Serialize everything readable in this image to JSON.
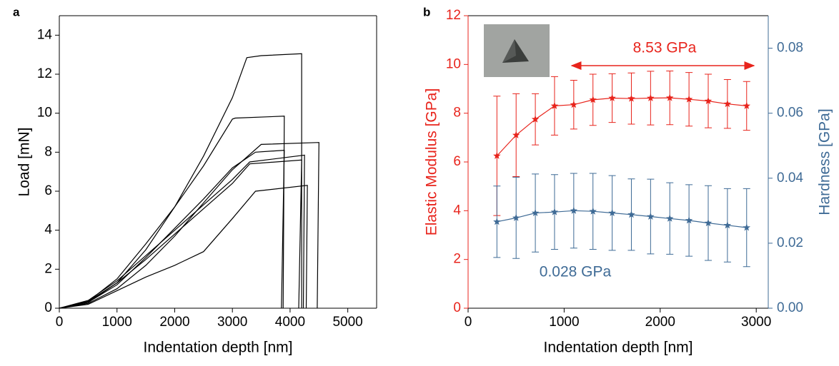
{
  "chart_data": [
    {
      "type": "line",
      "panel": "a",
      "xlabel": "Indentation depth [nm]",
      "ylabel": "Load [mN]",
      "xlim": [
        0,
        5500
      ],
      "xticks": [
        0,
        1000,
        2000,
        3000,
        4000,
        5000
      ],
      "ylim": [
        0,
        15
      ],
      "yticks": [
        0,
        2,
        4,
        6,
        8,
        10,
        12,
        14
      ],
      "color": "#000000",
      "series": [
        {
          "x": [
            0,
            500,
            1000,
            1500,
            2000,
            2500,
            3000,
            3250,
            3500,
            4200,
            4200
          ],
          "values": [
            0,
            0.3,
            1.3,
            3,
            5.2,
            7.8,
            10.8,
            12.85,
            12.95,
            13.05,
            0
          ]
        },
        {
          "x": [
            0,
            500,
            1000,
            1500,
            2000,
            2500,
            3000,
            3050,
            3900,
            3880
          ],
          "values": [
            0,
            0.35,
            1.5,
            3.3,
            5.2,
            7.3,
            9.7,
            9.75,
            9.85,
            0
          ]
        },
        {
          "x": [
            0,
            500,
            1000,
            1500,
            2000,
            2500,
            3000,
            3500,
            4500,
            4470
          ],
          "values": [
            0,
            0.25,
            1,
            2.2,
            3.7,
            5.4,
            7.1,
            8.4,
            8.5,
            0
          ]
        },
        {
          "x": [
            0,
            500,
            1000,
            1500,
            2000,
            2500,
            3000,
            3400,
            3900,
            3850
          ],
          "values": [
            0,
            0.3,
            1.2,
            2.6,
            4.1,
            5.6,
            7.2,
            8,
            8.1,
            0
          ]
        },
        {
          "x": [
            0,
            500,
            1000,
            1500,
            2000,
            2500,
            3000,
            3300,
            4250,
            4230
          ],
          "values": [
            0,
            0.4,
            1.4,
            2.7,
            4,
            5.3,
            6.6,
            7.5,
            7.85,
            0
          ]
        },
        {
          "x": [
            0,
            500,
            1000,
            1500,
            2000,
            2500,
            3000,
            3300,
            4200,
            4150
          ],
          "values": [
            0,
            0.35,
            1.3,
            2.5,
            3.8,
            5.1,
            6.4,
            7.4,
            7.6,
            0
          ]
        },
        {
          "x": [
            0,
            500,
            1000,
            1500,
            2000,
            2500,
            3000,
            3400,
            4300,
            4280
          ],
          "values": [
            0,
            0.2,
            0.9,
            1.6,
            2.2,
            2.9,
            4.6,
            6,
            6.3,
            0
          ]
        }
      ]
    },
    {
      "type": "errorbar",
      "panel": "b",
      "xlabel": "Indentation depth [nm]",
      "ylabel": "Elastic Modulus [GPa]",
      "y2label": "Hardness [GPa]",
      "xlim": [
        0,
        3125
      ],
      "xticks": [
        0,
        1000,
        2000,
        3000
      ],
      "ylim": [
        0,
        12
      ],
      "yticks": [
        0,
        2,
        4,
        6,
        8,
        10,
        12
      ],
      "y2lim": [
        0,
        0.09
      ],
      "y2ticks": [
        {
          "value": 0,
          "label": "0.00"
        },
        0.02,
        0.04,
        0.06,
        0.08
      ],
      "annotations": [
        "8.53 GPa",
        "0.028 GPa"
      ],
      "x": [
        300,
        500,
        700,
        900,
        1100,
        1300,
        1500,
        1700,
        1900,
        2100,
        2300,
        2500,
        2700,
        2900
      ],
      "series": [
        {
          "color": "#e8241c",
          "values": [
            6.25,
            7.1,
            7.75,
            8.3,
            8.35,
            8.55,
            8.62,
            8.6,
            8.62,
            8.63,
            8.57,
            8.5,
            8.38,
            8.3
          ],
          "errors": [
            2.45,
            1.7,
            1.05,
            1.2,
            1.0,
            1.05,
            1.0,
            1.05,
            1.1,
            1.1,
            1.1,
            1.1,
            1.0,
            1.0
          ]
        },
        {
          "color": "#3f6b96",
          "axis": "y2",
          "values": [
            0.0266,
            0.0278,
            0.0293,
            0.0296,
            0.03,
            0.0298,
            0.0293,
            0.0288,
            0.0282,
            0.0276,
            0.027,
            0.0262,
            0.0255,
            0.0248
          ],
          "errors": [
            0.011,
            0.0125,
            0.012,
            0.0115,
            0.0115,
            0.0117,
            0.0115,
            0.011,
            0.0115,
            0.011,
            0.011,
            0.0115,
            0.0113,
            0.012
          ]
        }
      ]
    }
  ]
}
